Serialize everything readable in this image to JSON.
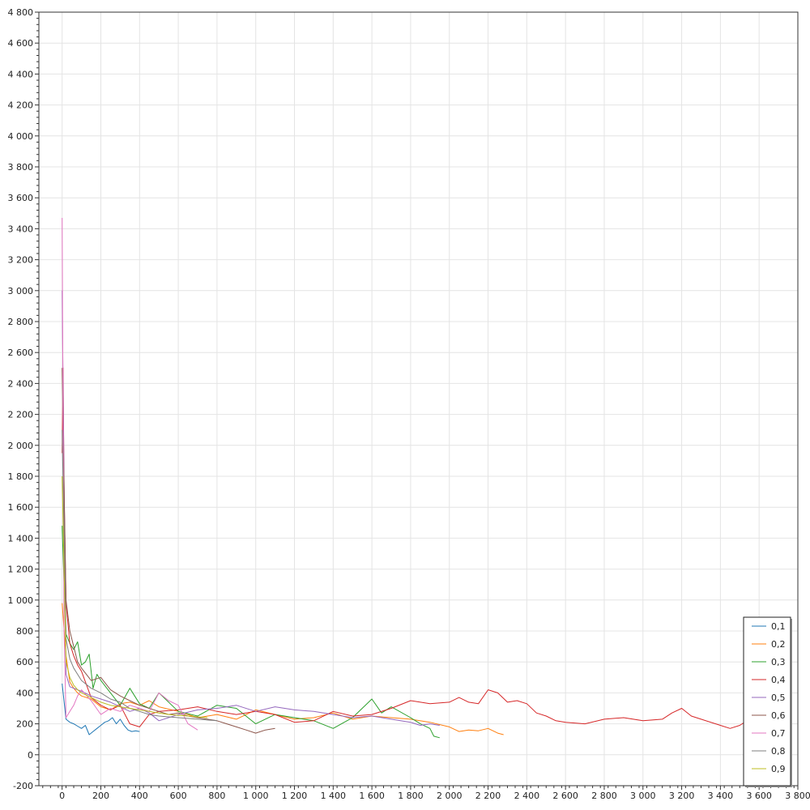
{
  "chart_data": {
    "type": "line",
    "title": "",
    "xlabel": "",
    "ylabel": "",
    "xlim": [
      -120,
      3800
    ],
    "ylim": [
      -200,
      4800
    ],
    "xticks": [
      0,
      200,
      400,
      600,
      800,
      1000,
      1200,
      1400,
      1600,
      1800,
      2000,
      2200,
      2400,
      2600,
      2800,
      3000,
      3200,
      3400,
      3600,
      3800
    ],
    "xtick_labels": [
      "0",
      "200",
      "400",
      "600",
      "800",
      "1 000",
      "1 200",
      "1 400",
      "1 600",
      "1 800",
      "2 000",
      "2 200",
      "2 400",
      "2 600",
      "2 800",
      "3 000",
      "3 200",
      "3 400",
      "3 600",
      "3 800"
    ],
    "yticks": [
      -200,
      0,
      200,
      400,
      600,
      800,
      1000,
      1200,
      1400,
      1600,
      1800,
      2000,
      2200,
      2400,
      2600,
      2800,
      3000,
      3200,
      3400,
      3600,
      3800,
      4000,
      4200,
      4400,
      4600,
      4800
    ],
    "ytick_labels": [
      "-200",
      "0",
      "200",
      "400",
      "600",
      "800",
      "1 000",
      "1 200",
      "1 400",
      "1 600",
      "1 800",
      "2 000",
      "2 200",
      "2 400",
      "2 600",
      "2 800",
      "3 000",
      "3 200",
      "3 400",
      "3 600",
      "3 800",
      "4 000",
      "4 200",
      "4 400",
      "4 600",
      "4 800"
    ],
    "grid": true,
    "legend": "bottom-right",
    "series": [
      {
        "name": "0,1",
        "color": "#1f77b4",
        "x": [
          0,
          20,
          40,
          60,
          80,
          100,
          120,
          140,
          160,
          180,
          200,
          220,
          240,
          260,
          280,
          300,
          320,
          340,
          360,
          380,
          400
        ],
        "y": [
          460,
          230,
          210,
          200,
          185,
          170,
          190,
          130,
          150,
          170,
          190,
          210,
          220,
          240,
          200,
          230,
          190,
          160,
          150,
          155,
          150
        ]
      },
      {
        "name": "0,2",
        "color": "#ff7f0e",
        "x": [
          0,
          20,
          40,
          60,
          80,
          100,
          150,
          200,
          250,
          300,
          350,
          400,
          450,
          500,
          600,
          700,
          800,
          900,
          1000,
          1100,
          1200,
          1300,
          1400,
          1500,
          1600,
          1700,
          1800,
          1900,
          2000,
          2050,
          2100,
          2150,
          2200,
          2250,
          2280
        ],
        "y": [
          980,
          640,
          470,
          430,
          400,
          380,
          360,
          310,
          290,
          330,
          340,
          320,
          350,
          310,
          280,
          240,
          260,
          230,
          290,
          260,
          230,
          240,
          270,
          230,
          250,
          240,
          230,
          210,
          180,
          150,
          160,
          155,
          170,
          140,
          130
        ]
      },
      {
        "name": "0,3",
        "color": "#2ca02c",
        "x": [
          0,
          10,
          20,
          40,
          60,
          80,
          100,
          120,
          140,
          160,
          180,
          200,
          250,
          300,
          350,
          400,
          450,
          500,
          600,
          700,
          800,
          900,
          1000,
          1100,
          1200,
          1300,
          1400,
          1500,
          1600,
          1650,
          1700,
          1800,
          1850,
          1900,
          1920,
          1950
        ],
        "y": [
          1480,
          1100,
          780,
          720,
          680,
          730,
          580,
          600,
          650,
          430,
          520,
          480,
          400,
          320,
          430,
          330,
          300,
          400,
          280,
          250,
          320,
          300,
          200,
          260,
          240,
          220,
          170,
          240,
          360,
          270,
          310,
          240,
          200,
          170,
          120,
          110
        ]
      },
      {
        "name": "0,4",
        "color": "#d62728",
        "x": [
          0,
          5,
          10,
          20,
          40,
          60,
          80,
          100,
          150,
          200,
          250,
          300,
          350,
          400,
          450,
          500,
          600,
          700,
          800,
          900,
          1000,
          1100,
          1200,
          1300,
          1400,
          1500,
          1600,
          1700,
          1800,
          1900,
          2000,
          2050,
          2100,
          2150,
          2200,
          2250,
          2300,
          2350,
          2400,
          2450,
          2500,
          2550,
          2600,
          2700,
          2800,
          2900,
          3000,
          3100,
          3150,
          3200,
          3250,
          3300,
          3400,
          3450,
          3500,
          3550,
          3600,
          3650,
          3700,
          3750
        ],
        "y": [
          1950,
          2500,
          1700,
          980,
          720,
          640,
          580,
          540,
          370,
          320,
          290,
          320,
          200,
          180,
          260,
          280,
          290,
          310,
          280,
          260,
          280,
          260,
          210,
          220,
          280,
          250,
          260,
          300,
          350,
          330,
          340,
          370,
          340,
          330,
          420,
          400,
          340,
          350,
          330,
          270,
          250,
          220,
          210,
          200,
          230,
          240,
          220,
          230,
          270,
          300,
          250,
          230,
          190,
          170,
          190,
          230,
          200,
          180,
          170,
          200
        ]
      },
      {
        "name": "0,5",
        "color": "#9467bd",
        "x": [
          0,
          20,
          40,
          60,
          80,
          100,
          150,
          200,
          250,
          300,
          350,
          400,
          450,
          500,
          600,
          700,
          800,
          900,
          1000,
          1100,
          1200,
          1300,
          1400,
          1500,
          1600,
          1700,
          1800,
          1850,
          1900,
          1950
        ],
        "y": [
          3000,
          520,
          440,
          430,
          420,
          410,
          380,
          360,
          340,
          310,
          280,
          300,
          270,
          220,
          260,
          290,
          300,
          320,
          280,
          310,
          290,
          280,
          260,
          240,
          250,
          230,
          210,
          190,
          200,
          190
        ]
      },
      {
        "name": "0,6",
        "color": "#8c564b",
        "x": [
          0,
          20,
          40,
          60,
          80,
          100,
          150,
          200,
          250,
          300,
          350,
          400,
          450,
          500,
          550,
          600,
          650,
          700,
          750,
          800,
          850,
          900,
          950,
          1000,
          1050,
          1100
        ],
        "y": [
          2500,
          1000,
          800,
          700,
          600,
          560,
          480,
          500,
          420,
          380,
          350,
          320,
          300,
          280,
          260,
          270,
          250,
          240,
          230,
          220,
          200,
          180,
          160,
          140,
          160,
          170
        ]
      },
      {
        "name": "0,7",
        "color": "#e377c2",
        "x": [
          0,
          10,
          20,
          40,
          60,
          80,
          100,
          150,
          200,
          250,
          300,
          350,
          400,
          450,
          500,
          550,
          600,
          650,
          700
        ],
        "y": [
          3470,
          800,
          240,
          280,
          320,
          380,
          420,
          350,
          260,
          300,
          280,
          320,
          300,
          280,
          400,
          350,
          320,
          200,
          160
        ]
      },
      {
        "name": "0,8",
        "color": "#7f7f7f",
        "x": [
          0,
          20,
          40,
          60,
          80,
          100,
          150,
          200,
          250,
          300,
          350,
          400,
          450,
          500,
          600,
          700,
          800
        ],
        "y": [
          2100,
          750,
          620,
          560,
          520,
          480,
          430,
          400,
          360,
          340,
          300,
          280,
          260,
          250,
          240,
          230,
          220
        ]
      },
      {
        "name": "0,9",
        "color": "#bcbd22",
        "x": [
          0,
          20,
          40,
          60,
          80,
          100,
          150,
          200,
          250,
          300,
          350,
          400,
          450,
          500,
          550,
          600,
          650,
          700,
          750
        ],
        "y": [
          1800,
          600,
          500,
          450,
          420,
          400,
          370,
          340,
          320,
          310,
          300,
          290,
          280,
          270,
          260,
          255,
          250,
          245,
          240
        ]
      }
    ]
  }
}
